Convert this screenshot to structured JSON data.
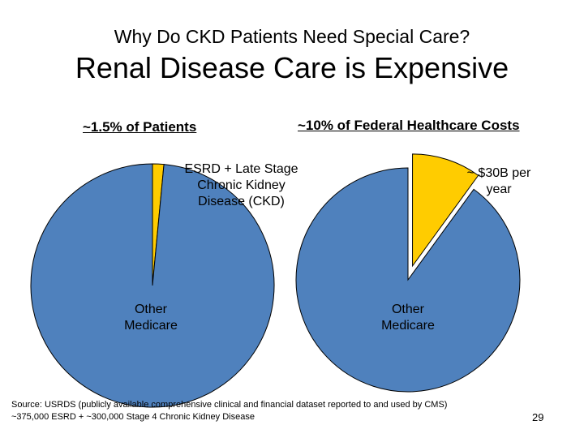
{
  "slide": {
    "subtitle": "Why Do CKD Patients Need Special Care?",
    "title": "Renal Disease Care is Expensive",
    "source": "Source: USRDS (publicly available comprehensive clinical and financial dataset reported to and used by CMS)\n~375,000 ESRD  +  ~300,000 Stage 4 Chronic Kidney Disease",
    "page_number": "29"
  },
  "colors": {
    "other_medicare": "#4F81BD",
    "highlight_slice": "#FFCC00",
    "background": "#FFFFFF"
  },
  "chart_data": [
    {
      "type": "pie",
      "title": "~1.5% of Patients",
      "labels": [
        "ESRD + Late Stage\nChronic Kidney\nDisease (CKD)",
        "Other\nMedicare"
      ],
      "values": [
        1.5,
        98.5
      ],
      "colors": [
        "#FFCC00",
        "#4F81BD"
      ],
      "exploded": [
        true,
        false
      ]
    },
    {
      "type": "pie",
      "title": "~10% of  Federal Healthcare Costs",
      "labels": [
        "~ $30B per\nyear",
        "Other\nMedicare"
      ],
      "values": [
        10,
        90
      ],
      "colors": [
        "#FFCC00",
        "#4F81BD"
      ],
      "exploded": [
        true,
        false
      ]
    }
  ]
}
